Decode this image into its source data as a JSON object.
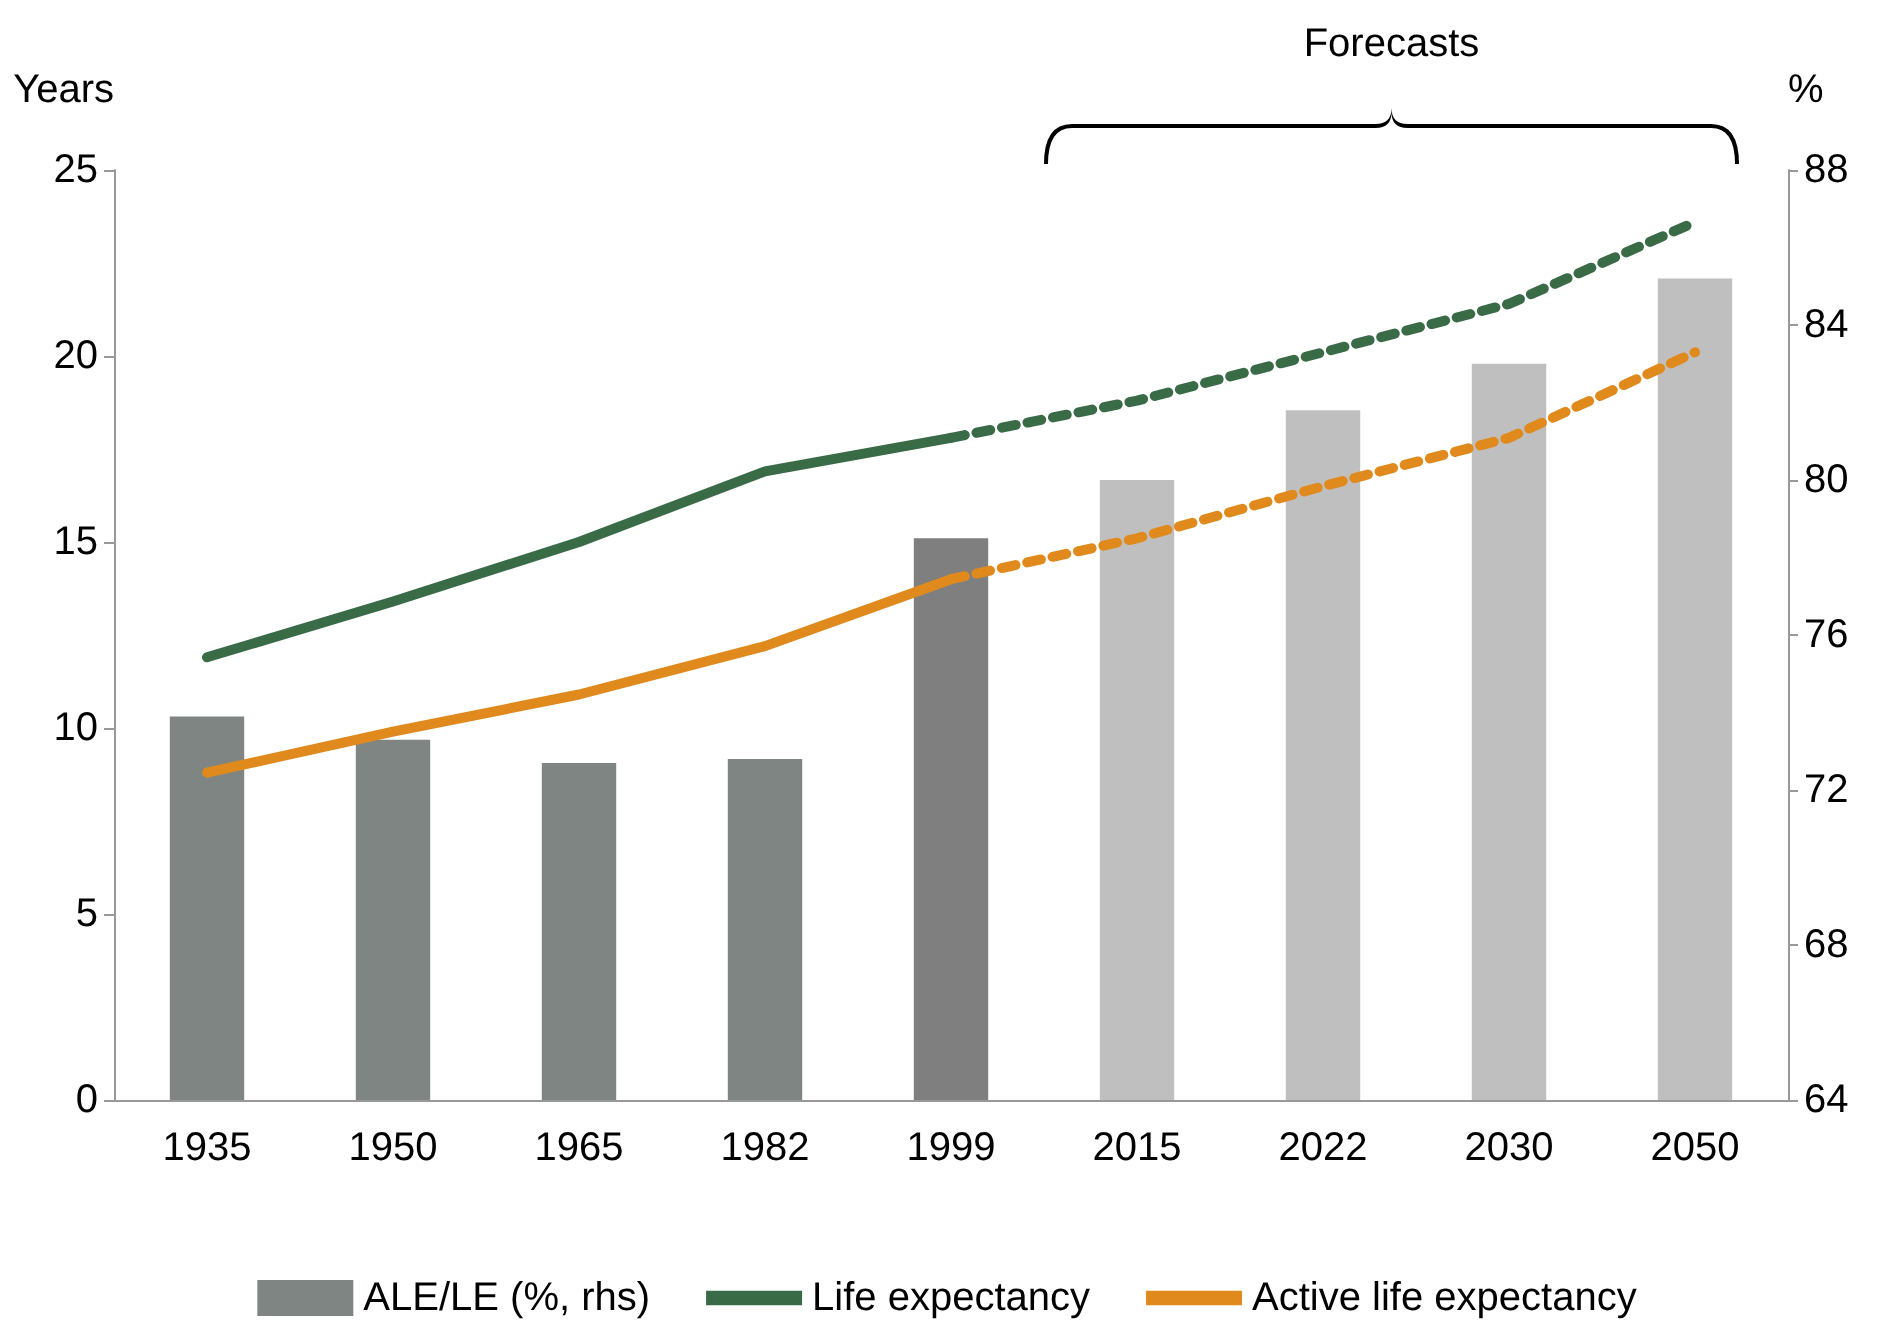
{
  "chart_data": {
    "type": "bar",
    "ylabel": "Years",
    "y2label": "%",
    "annotations": [
      "Forecasts"
    ],
    "categories": [
      "1935",
      "1950",
      "1965",
      "1982",
      "1999",
      "2015",
      "2022",
      "2030",
      "2050"
    ],
    "series": [
      {
        "name": "ALE/LE (%, rhs)",
        "axis": "y2",
        "color": "#7f8583",
        "colors": [
          "#7f8583",
          "#7f8583",
          "#7f8583",
          "#7f8583",
          "#7f7f7f",
          "#bfbfbf",
          "#bfbfbf",
          "#bfbfbf",
          "#bfbfbf"
        ],
        "values": [
          73.9,
          73.3,
          72.7,
          72.8,
          78.5,
          80.0,
          81.8,
          83.0,
          85.2
        ]
      },
      {
        "name": "Life expectancy",
        "type": "line",
        "color": "#3a6b47",
        "line_style": "solid",
        "values": [
          11.9,
          13.4,
          15.0,
          16.9,
          17.8,
          null,
          null,
          null,
          null
        ]
      },
      {
        "type": "line",
        "color": "#3a6b47",
        "line_style": "dashed",
        "values": [
          null,
          null,
          null,
          null,
          17.8,
          18.8,
          20.1,
          21.4,
          23.6
        ]
      },
      {
        "name": "Active life expectancy",
        "type": "line",
        "color": "#e08a1e",
        "line_style": "solid",
        "values": [
          8.8,
          9.9,
          10.9,
          12.2,
          14.0,
          null,
          null,
          null,
          null
        ]
      },
      {
        "type": "line",
        "color": "#e08a1e",
        "line_style": "dashed",
        "values": [
          null,
          null,
          null,
          null,
          14.0,
          15.1,
          16.5,
          17.8,
          20.1
        ]
      }
    ],
    "ylim": [
      0,
      25
    ],
    "yticks": [
      0,
      5,
      10,
      15,
      20,
      25
    ],
    "y2lim": [
      64,
      88
    ],
    "y2ticks": [
      64,
      68,
      72,
      76,
      80,
      84,
      88
    ],
    "grid": false,
    "legend": "bottom",
    "marker": "none"
  }
}
